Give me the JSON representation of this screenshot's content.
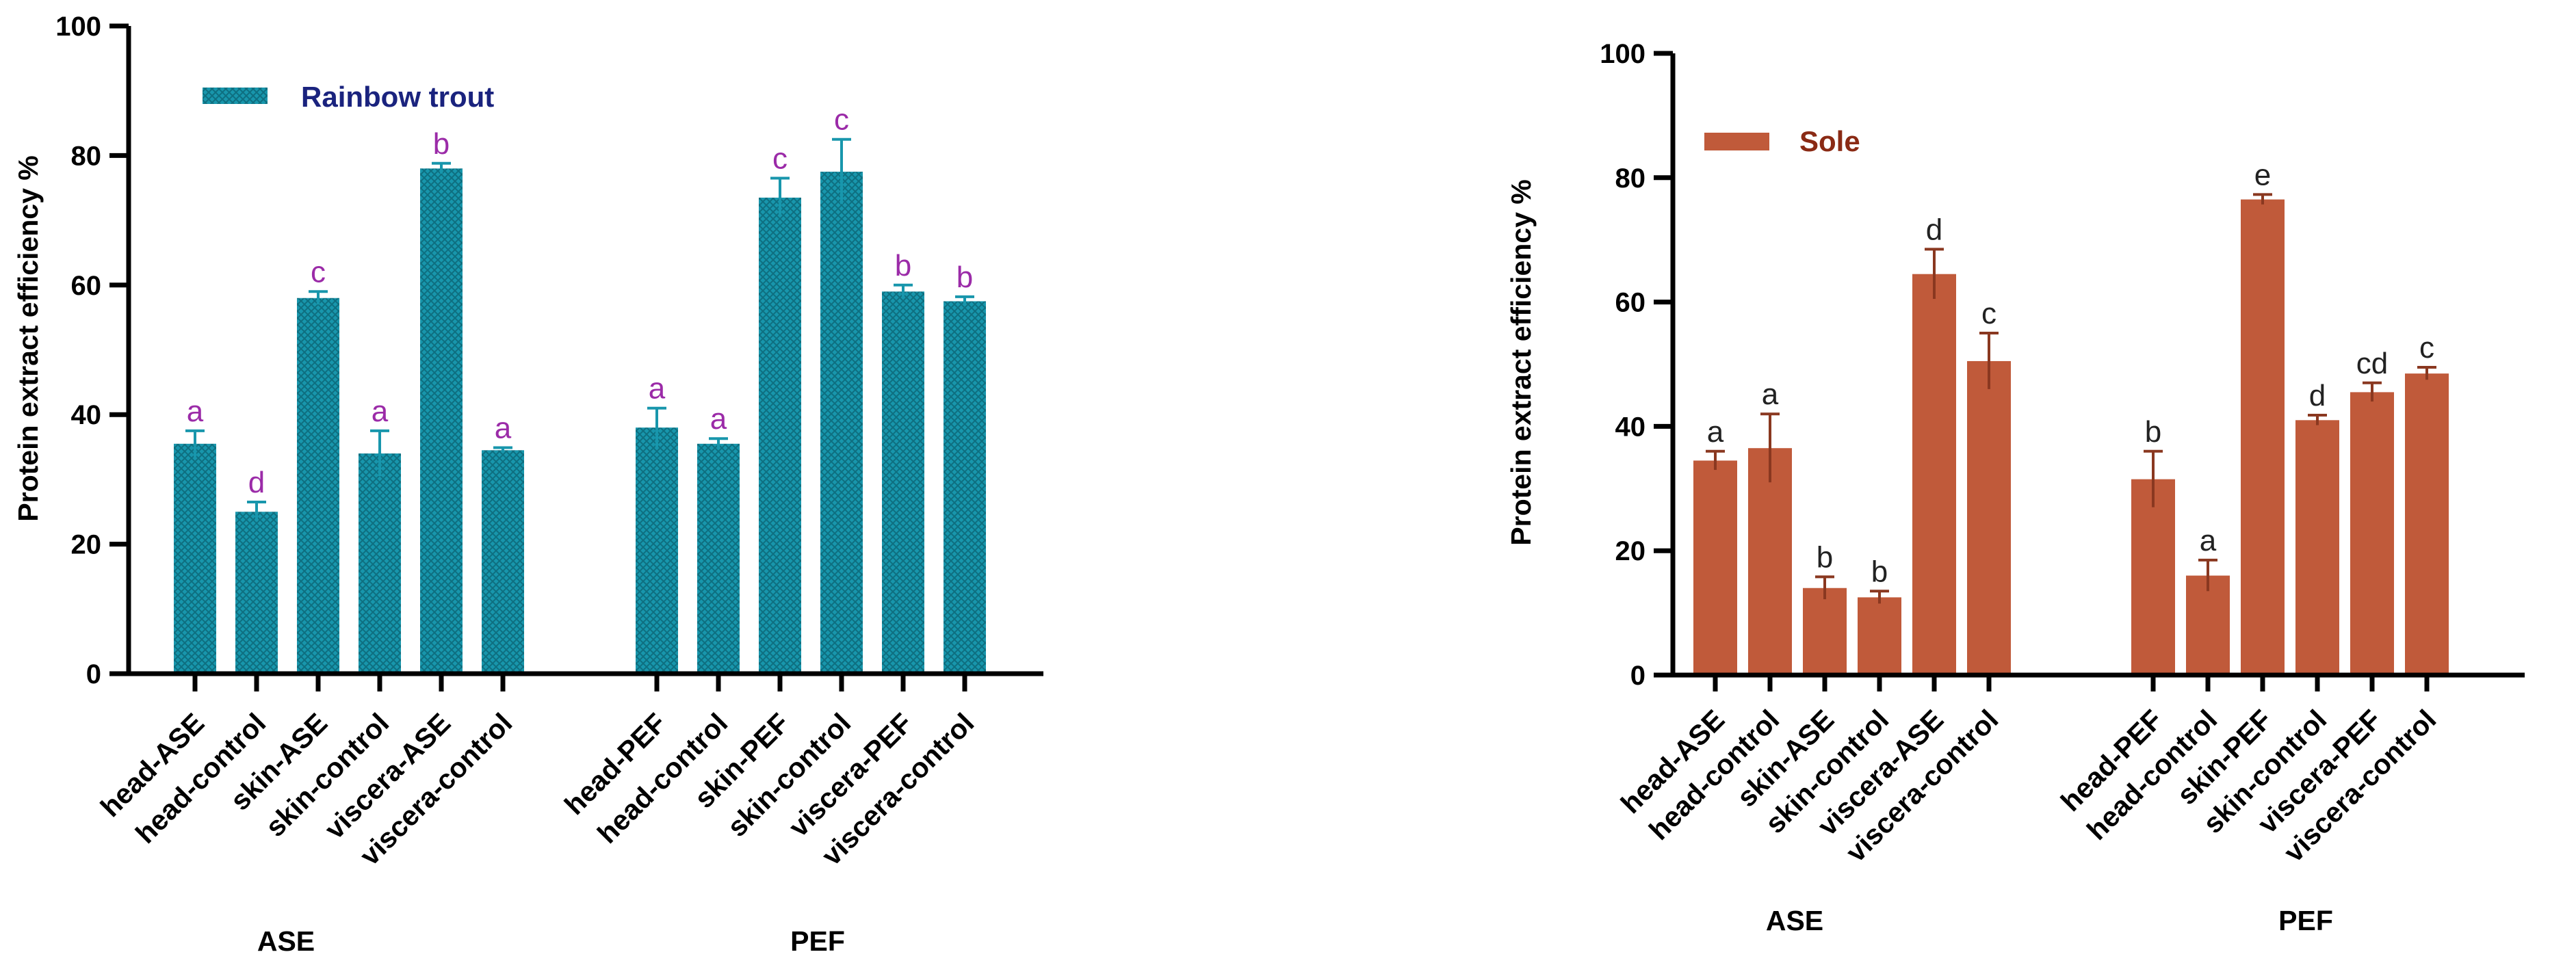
{
  "colors": {
    "trout_bar": "#1896ac",
    "trout_hatch": "#0e6f80",
    "trout_error": "#1896ac",
    "trout_letter": "#9b2ba8",
    "trout_legend_text": "#1a237e",
    "sole_bar": "#c05a3a",
    "sole_error": "#8a3820",
    "sole_letter": "#222222",
    "sole_legend_text": "#8a2a14"
  },
  "chart_data": [
    {
      "type": "bar",
      "legend": "Rainbow trout",
      "ylabel": "Protein extract efficiency %",
      "ylim": [
        0,
        100
      ],
      "yticks": [
        0,
        20,
        40,
        60,
        80,
        100
      ],
      "groups": [
        {
          "name": "ASE",
          "categories": [
            "head-ASE",
            "head-control",
            "skin-ASE",
            "skin-control",
            "viscera-ASE",
            "viscera-control"
          ],
          "values": [
            35.5,
            25.0,
            58.0,
            34.0,
            78.0,
            34.5
          ],
          "errors": [
            2.0,
            1.5,
            1.0,
            3.5,
            0.8,
            0.4
          ],
          "letters": [
            "a",
            "d",
            "c",
            "a",
            "b",
            "a"
          ]
        },
        {
          "name": "PEF",
          "categories": [
            "head-PEF",
            "head-control",
            "skin-PEF",
            "skin-control",
            "viscera-PEF",
            "viscera-control"
          ],
          "values": [
            38.0,
            35.5,
            73.5,
            77.5,
            59.0,
            57.5
          ],
          "errors": [
            3.0,
            0.8,
            3.0,
            5.0,
            1.0,
            0.7
          ],
          "letters": [
            "a",
            "a",
            "c",
            "c",
            "b",
            "b"
          ]
        }
      ]
    },
    {
      "type": "bar",
      "legend": "Sole",
      "ylabel": "Protein extract efficiency %",
      "ylim": [
        0,
        100
      ],
      "yticks": [
        0,
        20,
        40,
        60,
        80,
        100
      ],
      "groups": [
        {
          "name": "ASE",
          "categories": [
            "head-ASE",
            "head-control",
            "skin-ASE",
            "skin-control",
            "viscera-ASE",
            "viscera-control"
          ],
          "values": [
            34.5,
            36.5,
            14.0,
            12.5,
            64.5,
            50.5
          ],
          "errors": [
            1.5,
            5.5,
            1.8,
            1.0,
            4.0,
            4.5
          ],
          "letters": [
            "a",
            "a",
            "b",
            "b",
            "d",
            "c"
          ]
        },
        {
          "name": "PEF",
          "categories": [
            "head-PEF",
            "head-control",
            "skin-PEF",
            "skin-control",
            "viscera-PEF",
            "viscera-control"
          ],
          "values": [
            31.5,
            16.0,
            76.5,
            41.0,
            45.5,
            48.5
          ],
          "errors": [
            4.5,
            2.5,
            0.8,
            0.8,
            1.5,
            1.0
          ],
          "letters": [
            "b",
            "a",
            "e",
            "d",
            "cd",
            "c"
          ]
        }
      ]
    }
  ]
}
